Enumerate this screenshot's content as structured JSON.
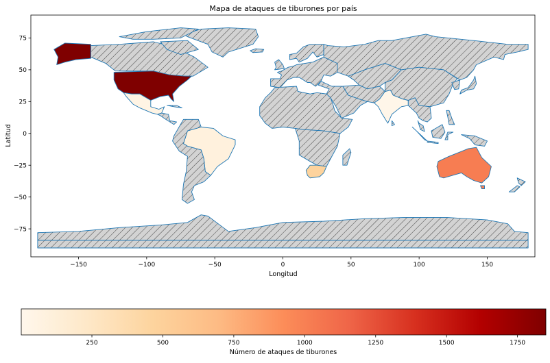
{
  "chart_data": [
    {
      "type": "choropleth-map",
      "title": "Mapa de ataques de tiburones por país",
      "xlabel": "Longitud",
      "ylabel": "Latitud",
      "xlim": [
        -185,
        185
      ],
      "ylim": [
        -97,
        93
      ],
      "xticks": [
        -150,
        -100,
        -50,
        0,
        50,
        100,
        150
      ],
      "xtick_labels": [
        "−150",
        "−100",
        "−50",
        "0",
        "50",
        "100",
        "150"
      ],
      "yticks": [
        75,
        50,
        25,
        0,
        -25,
        -50,
        -75
      ],
      "ytick_labels": [
        "75",
        "50",
        "25",
        "0",
        "−25",
        "−50",
        "−75"
      ],
      "grid": false,
      "no_data_style": "light grey with diagonal hatching",
      "colormap": "OrRd",
      "highlighted_countries": [
        {
          "name": "United States",
          "attacks": 1850
        },
        {
          "name": "Australia",
          "attacks": 1020
        },
        {
          "name": "South Africa",
          "attacks": 470
        },
        {
          "name": "Brazil",
          "attacks": 100
        },
        {
          "name": "Mexico",
          "attacks": 50
        },
        {
          "name": "India",
          "attacks": 20
        }
      ]
    },
    {
      "type": "colorbar",
      "label": "Número de ataques de tiburones",
      "vmin": 1,
      "vmax": 1850,
      "ticks": [
        250,
        500,
        750,
        1000,
        1250,
        1500,
        1750
      ],
      "tick_labels": [
        "250",
        "500",
        "750",
        "1000",
        "1250",
        "1500",
        "1750"
      ],
      "colors": [
        "#fff7ec",
        "#fee8c8",
        "#fdd49e",
        "#fdbb84",
        "#fc8d59",
        "#ef6548",
        "#d7301f",
        "#b30000",
        "#7f0000"
      ]
    }
  ]
}
